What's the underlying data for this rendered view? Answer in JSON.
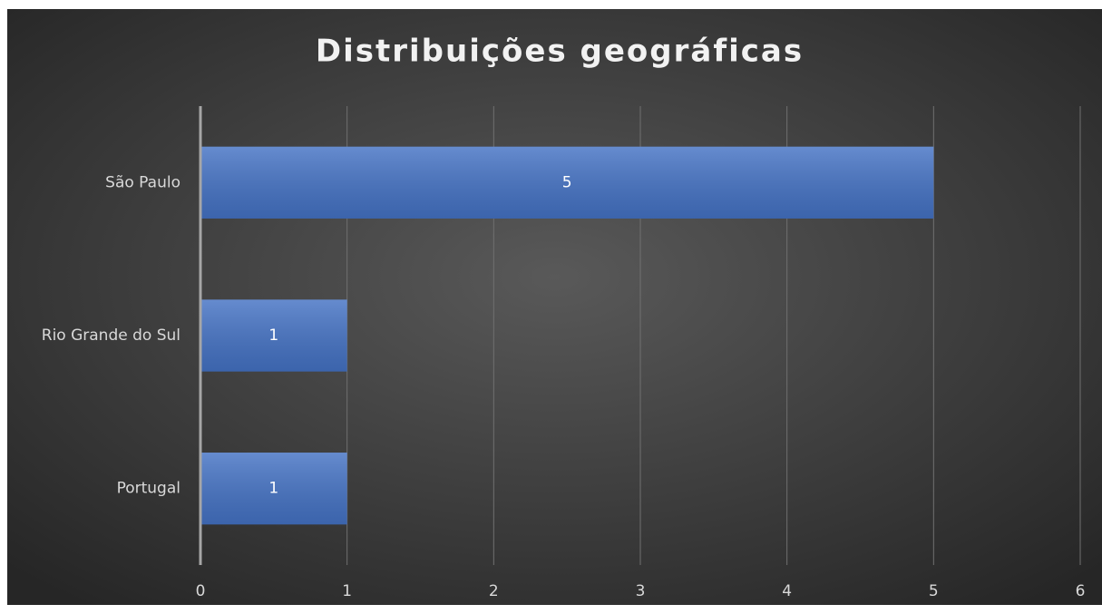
{
  "chart_data": {
    "type": "bar",
    "orientation": "horizontal",
    "title": "Distribuições geográficas",
    "categories": [
      "São Paulo",
      "Rio Grande do Sul",
      "Portugal"
    ],
    "values": [
      5,
      1,
      1
    ],
    "color": "#4472c4",
    "xlim": [
      0,
      6
    ],
    "xticks": [
      0,
      1,
      2,
      3,
      4,
      5,
      6
    ],
    "grid": true,
    "data_labels": true
  }
}
